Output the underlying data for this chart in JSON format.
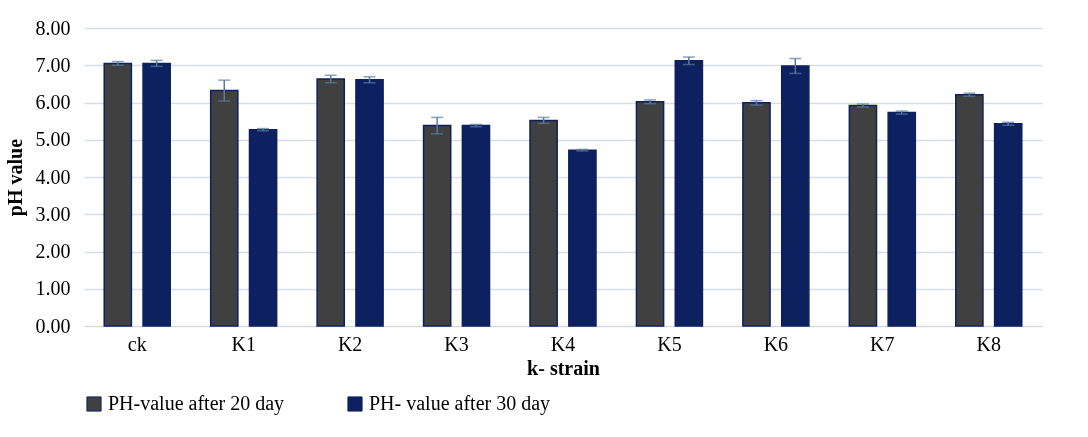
{
  "chart_data": {
    "type": "bar",
    "xlabel": "k- strain",
    "ylabel": "pH  value",
    "categories": [
      "ck",
      "K1",
      "K2",
      "K3",
      "K4",
      "K5",
      "K6",
      "K7",
      "K8"
    ],
    "series": [
      {
        "name": "PH-value after 20 day",
        "color": "#404040",
        "values": [
          7.05,
          6.32,
          6.63,
          5.38,
          5.52,
          6.02,
          5.99,
          5.92,
          6.21
        ],
        "errors": [
          0.05,
          0.28,
          0.1,
          0.22,
          0.08,
          0.05,
          0.06,
          0.04,
          0.04
        ]
      },
      {
        "name": "PH- value after 30 day",
        "color": "#0d2160",
        "values": [
          7.05,
          5.27,
          6.61,
          5.38,
          4.72,
          7.12,
          6.98,
          5.73,
          5.43
        ],
        "errors": [
          0.08,
          0.03,
          0.08,
          0.03,
          0.02,
          0.1,
          0.2,
          0.04,
          0.04
        ]
      }
    ],
    "ylim": [
      0,
      8
    ],
    "yticks": [
      {
        "value": 0,
        "label": "0.00"
      },
      {
        "value": 1,
        "label": "1.00"
      },
      {
        "value": 2,
        "label": "2.00"
      },
      {
        "value": 3,
        "label": "3.00"
      },
      {
        "value": 4,
        "label": "4.00"
      },
      {
        "value": 5,
        "label": "5.00"
      },
      {
        "value": 6,
        "label": "6.00"
      },
      {
        "value": 7,
        "label": "7.00"
      },
      {
        "value": 8,
        "label": "8.00"
      }
    ],
    "grid": "y",
    "legend": "bottom"
  }
}
